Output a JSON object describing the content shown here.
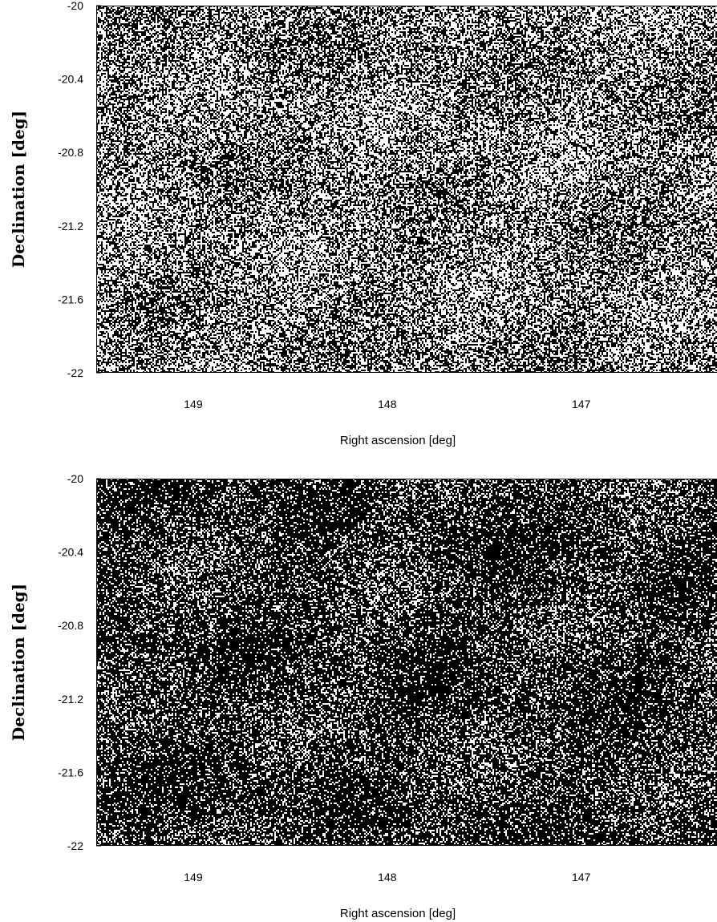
{
  "chart_data": [
    {
      "type": "heatmap",
      "subtype": "binary sky density map",
      "xlabel": "Right ascension [deg]",
      "ylabel": "Declination [deg]",
      "xlim": [
        149.5,
        146.3
      ],
      "ylim": [
        -22,
        -20
      ],
      "x_reversed": true,
      "xticks": [
        149,
        148,
        147
      ],
      "xtick_labels": [
        "149",
        "148",
        "147"
      ],
      "yticks": [
        -20,
        -20.4,
        -20.8,
        -21.2,
        -21.6,
        -22
      ],
      "ytick_labels": [
        "-20",
        "-20.4",
        "-20.8",
        "-21.2",
        "-21.6",
        "-22"
      ],
      "fill_fraction": 0.5,
      "colors": {
        "foreground": "#000000",
        "background": "#ffffff"
      },
      "grid": false
    },
    {
      "type": "heatmap",
      "subtype": "binary sky density map",
      "xlabel": "Right ascension [deg]",
      "ylabel": "Declination [deg]",
      "xlim": [
        149.5,
        146.3
      ],
      "ylim": [
        -22,
        -20
      ],
      "x_reversed": true,
      "xticks": [
        149,
        148,
        147
      ],
      "xtick_labels": [
        "149",
        "148",
        "147"
      ],
      "yticks": [
        -20,
        -20.4,
        -20.8,
        -21.2,
        -21.6,
        -22
      ],
      "ytick_labels": [
        "-20",
        "-20.4",
        "-20.8",
        "-21.2",
        "-21.6",
        "-22"
      ],
      "fill_fraction": 0.75,
      "colors": {
        "foreground": "#000000",
        "background": "#ffffff"
      },
      "grid": false
    }
  ]
}
